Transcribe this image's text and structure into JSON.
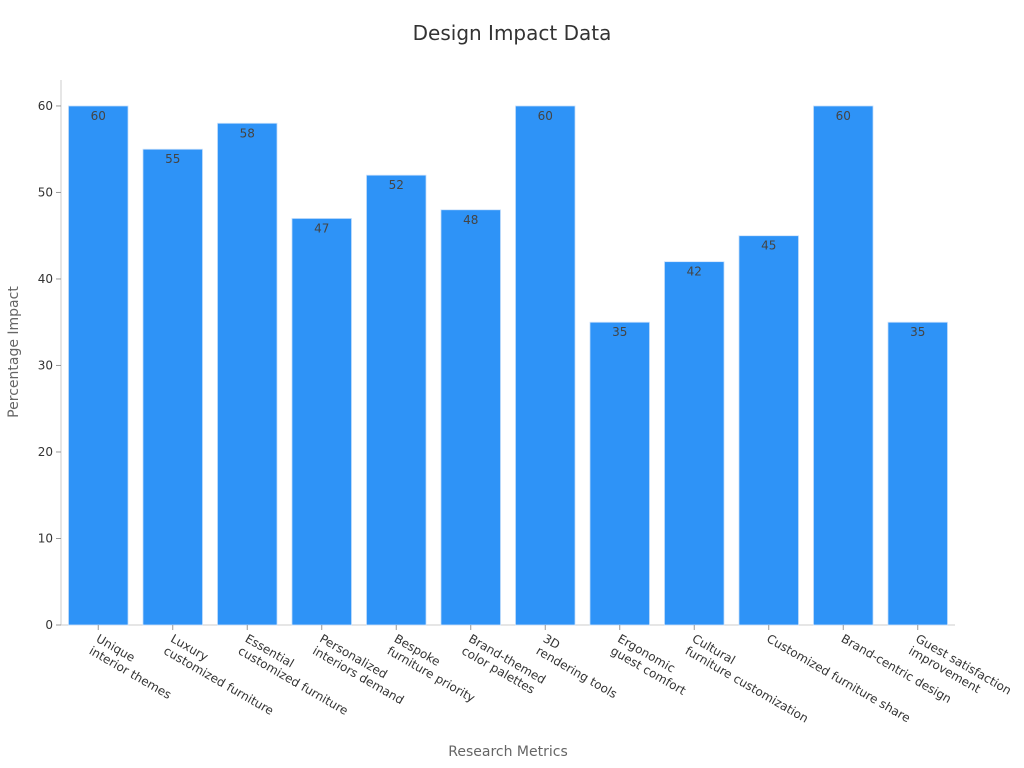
{
  "chart_data": {
    "type": "bar",
    "title": "Design Impact Data",
    "x_label": "Research Metrics",
    "y_label": "Percentage Impact",
    "categories": [
      "Unique\ninterior themes",
      "Luxury\ncustomized furniture",
      "Essential\ncustomized furniture",
      "Personalized\ninteriors demand",
      "Bespoke\nfurniture priority",
      "Brand-themed\ncolor palettes",
      "3D\nrendering tools",
      "Ergonomic\nguest comfort",
      "Cultural\nfurniture customization",
      "Customized furniture share",
      "Brand-centric design",
      "Guest satisfaction\nimprovement"
    ],
    "values": [
      60,
      55,
      58,
      47,
      52,
      48,
      60,
      35,
      42,
      45,
      60,
      35
    ],
    "color": "#2e93f7",
    "ylim": [
      0,
      63
    ],
    "yticks": [
      0,
      10,
      20,
      30,
      40,
      50,
      60
    ],
    "grid": false
  }
}
